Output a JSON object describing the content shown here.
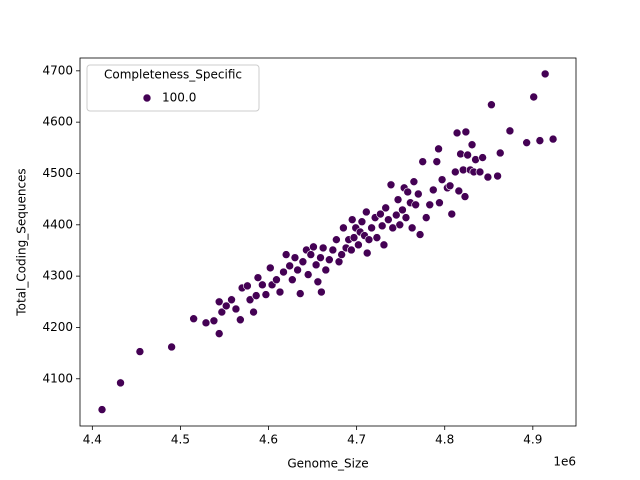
{
  "chart_data": {
    "type": "scatter",
    "x_label": "Genome_Size",
    "y_label": "Total_Coding_Sequences",
    "x_offset_label": "1e6",
    "legend_title": "Completeness_Specific",
    "legend_position": "upper left",
    "xlim": [
      4386000,
      4949000
    ],
    "ylim": [
      4008,
      4725
    ],
    "xticks": [
      {
        "value": 4400000,
        "label": "4.4"
      },
      {
        "value": 4500000,
        "label": "4.5"
      },
      {
        "value": 4600000,
        "label": "4.6"
      },
      {
        "value": 4700000,
        "label": "4.7"
      },
      {
        "value": 4800000,
        "label": "4.8"
      },
      {
        "value": 4900000,
        "label": "4.9"
      }
    ],
    "yticks": [
      4100,
      4200,
      4300,
      4400,
      4500,
      4600,
      4700
    ],
    "x": [
      4411000,
      4432000,
      4454000,
      4490000,
      4515000,
      4529000,
      4538000,
      4544000,
      4544000,
      4547000,
      4552000,
      4558000,
      4563000,
      4568000,
      4570000,
      4576000,
      4579000,
      4583000,
      4586000,
      4588000,
      4593000,
      4597000,
      4602000,
      4604000,
      4609000,
      4613000,
      4617000,
      4620000,
      4624000,
      4627000,
      4630000,
      4633000,
      4636000,
      4639000,
      4643000,
      4645000,
      4648000,
      4651000,
      4654000,
      4656000,
      4659000,
      4660000,
      4662000,
      4665000,
      4669000,
      4673000,
      4677000,
      4680000,
      4683000,
      4685000,
      4688000,
      4691000,
      4694000,
      4695000,
      4697000,
      4699000,
      4702000,
      4704000,
      4706000,
      4709000,
      4711000,
      4712000,
      4714000,
      4717000,
      4721000,
      4723000,
      4727000,
      4729000,
      4731000,
      4733000,
      4736000,
      4739000,
      4741000,
      4745000,
      4747000,
      4749000,
      4752000,
      4754000,
      4756000,
      4758000,
      4761000,
      4763000,
      4765000,
      4767000,
      4770000,
      4772000,
      4775000,
      4779000,
      4783000,
      4787000,
      4791000,
      4793000,
      4794000,
      4797000,
      4803000,
      4806000,
      4808000,
      4812000,
      4814000,
      4816000,
      4818000,
      4821000,
      4823000,
      4824000,
      4826000,
      4829000,
      4831000,
      4833000,
      4835000,
      4840000,
      4843000,
      4849000,
      4853000,
      4860000,
      4863000,
      4874000,
      4893000,
      4901000,
      4908000,
      4914000,
      4923000
    ],
    "series": [
      {
        "name": "100.0",
        "color": "#440154",
        "values": [
          4040,
          4092,
          4153,
          4162,
          4217,
          4209,
          4213,
          4188,
          4250,
          4230,
          4242,
          4254,
          4236,
          4215,
          4277,
          4281,
          4254,
          4230,
          4262,
          4297,
          4283,
          4264,
          4316,
          4283,
          4293,
          4269,
          4308,
          4342,
          4320,
          4293,
          4336,
          4312,
          4266,
          4328,
          4351,
          4303,
          4342,
          4357,
          4322,
          4289,
          4336,
          4269,
          4355,
          4312,
          4332,
          4351,
          4371,
          4328,
          4342,
          4394,
          4355,
          4371,
          4351,
          4410,
          4375,
          4394,
          4361,
          4386,
          4406,
          4379,
          4425,
          4345,
          4371,
          4394,
          4414,
          4375,
          4421,
          4398,
          4361,
          4433,
          4410,
          4478,
          4394,
          4419,
          4449,
          4400,
          4429,
          4472,
          4414,
          4464,
          4443,
          4394,
          4484,
          4439,
          4460,
          4381,
          4523,
          4414,
          4439,
          4468,
          4523,
          4548,
          4443,
          4488,
          4472,
          4476,
          4421,
          4503,
          4579,
          4466,
          4538,
          4507,
          4455,
          4581,
          4536,
          4507,
          4556,
          4503,
          4527,
          4503,
          4531,
          4493,
          4634,
          4495,
          4540,
          4583,
          4560,
          4649,
          4564,
          4694,
          4567
        ]
      }
    ]
  }
}
